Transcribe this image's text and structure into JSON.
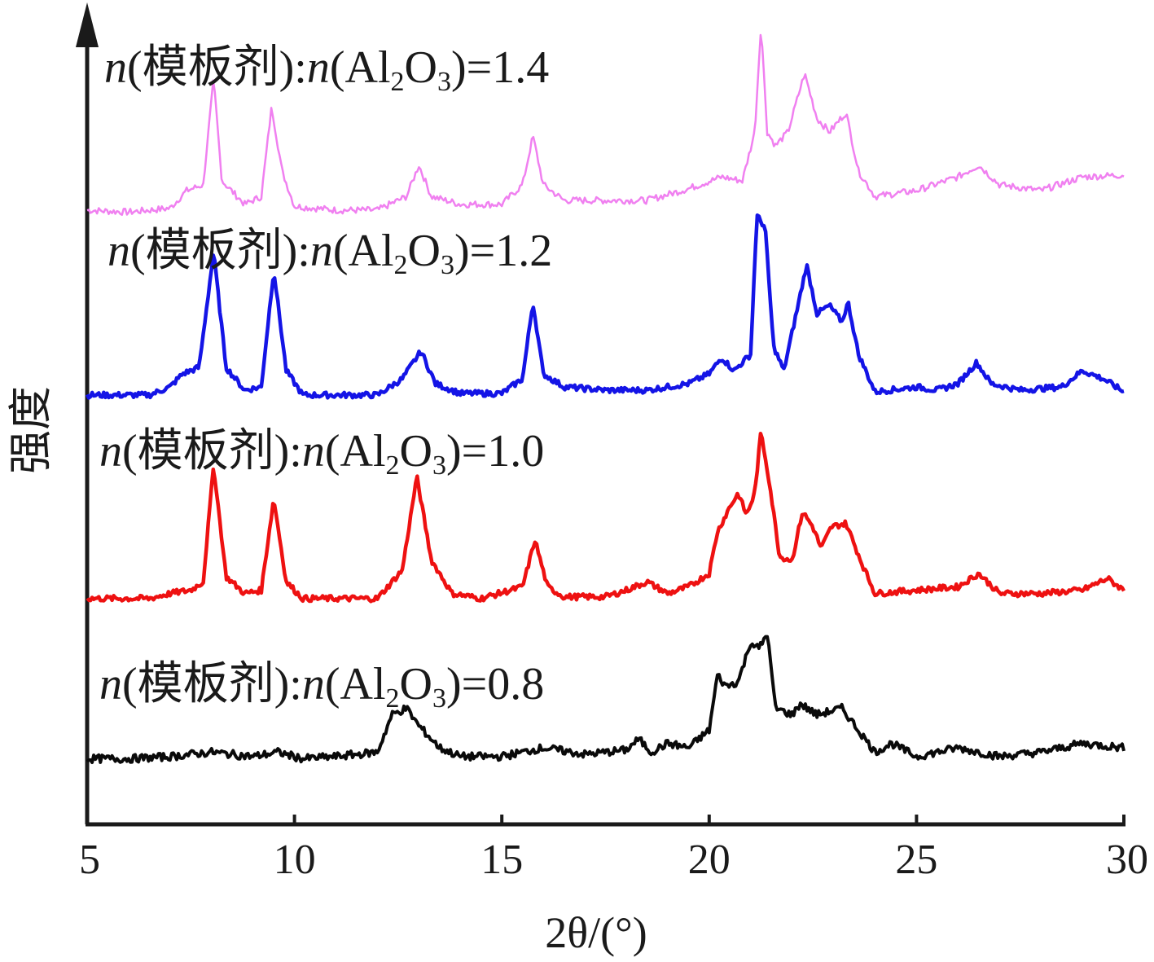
{
  "chart_data": {
    "type": "line",
    "xlabel": "2θ/(°)",
    "ylabel": "强度",
    "xlim": [
      5,
      30
    ],
    "x_ticks": [
      "5",
      "10",
      "15",
      "20",
      "25",
      "30"
    ],
    "y_ticks_shown": false,
    "grid": false,
    "legend": "none",
    "series": [
      {
        "name": "n(模板剂):n(Al2O3)=1.4",
        "label_parts": {
          "n": "n",
          "open": "(模板剂):",
          "mid": "(Al",
          "sub2": "2",
          "O": "O",
          "sub3": "3",
          "close": ")=1.4"
        },
        "color": "#f080f0",
        "points": [
          [
            5,
            0.05
          ],
          [
            6,
            0.04
          ],
          [
            7,
            0.06
          ],
          [
            7.4,
            0.15
          ],
          [
            7.8,
            0.18
          ],
          [
            8.05,
            0.72
          ],
          [
            8.25,
            0.2
          ],
          [
            8.8,
            0.08
          ],
          [
            9.2,
            0.12
          ],
          [
            9.45,
            0.58
          ],
          [
            9.7,
            0.25
          ],
          [
            10,
            0.07
          ],
          [
            11,
            0.05
          ],
          [
            12,
            0.05
          ],
          [
            12.7,
            0.12
          ],
          [
            13.0,
            0.28
          ],
          [
            13.3,
            0.12
          ],
          [
            14,
            0.08
          ],
          [
            15,
            0.08
          ],
          [
            15.5,
            0.18
          ],
          [
            15.75,
            0.43
          ],
          [
            16.0,
            0.18
          ],
          [
            16.5,
            0.1
          ],
          [
            17.5,
            0.1
          ],
          [
            18.5,
            0.1
          ],
          [
            19.5,
            0.16
          ],
          [
            20.3,
            0.22
          ],
          [
            20.8,
            0.2
          ],
          [
            21.1,
            0.45
          ],
          [
            21.25,
            1.0
          ],
          [
            21.4,
            0.45
          ],
          [
            21.6,
            0.38
          ],
          [
            21.9,
            0.45
          ],
          [
            22.3,
            0.75
          ],
          [
            22.6,
            0.52
          ],
          [
            22.9,
            0.45
          ],
          [
            23.3,
            0.55
          ],
          [
            23.6,
            0.25
          ],
          [
            24.0,
            0.12
          ],
          [
            25.0,
            0.15
          ],
          [
            26.0,
            0.22
          ],
          [
            26.5,
            0.28
          ],
          [
            27.0,
            0.18
          ],
          [
            28.0,
            0.15
          ],
          [
            29.0,
            0.22
          ],
          [
            30,
            0.23
          ]
        ]
      },
      {
        "name": "n(模板剂):n(Al2O3)=1.2",
        "label_parts": {
          "n": "n",
          "open": "(模板剂):",
          "mid": "(Al",
          "sub2": "2",
          "O": "O",
          "sub3": "3",
          "close": ")=1.2"
        },
        "color": "#1414e6",
        "points": [
          [
            5,
            0.05
          ],
          [
            6.5,
            0.05
          ],
          [
            7.0,
            0.1
          ],
          [
            7.3,
            0.18
          ],
          [
            7.7,
            0.22
          ],
          [
            8.05,
            0.93
          ],
          [
            8.35,
            0.22
          ],
          [
            8.8,
            0.08
          ],
          [
            9.2,
            0.1
          ],
          [
            9.5,
            0.82
          ],
          [
            9.8,
            0.2
          ],
          [
            10.2,
            0.05
          ],
          [
            11,
            0.05
          ],
          [
            12,
            0.05
          ],
          [
            12.6,
            0.15
          ],
          [
            13.05,
            0.32
          ],
          [
            13.4,
            0.12
          ],
          [
            14,
            0.06
          ],
          [
            15,
            0.06
          ],
          [
            15.5,
            0.15
          ],
          [
            15.75,
            0.62
          ],
          [
            16.0,
            0.18
          ],
          [
            16.5,
            0.1
          ],
          [
            17.5,
            0.08
          ],
          [
            18.5,
            0.08
          ],
          [
            19.5,
            0.12
          ],
          [
            20.0,
            0.18
          ],
          [
            20.3,
            0.28
          ],
          [
            20.6,
            0.2
          ],
          [
            21.0,
            0.3
          ],
          [
            21.15,
            1.15
          ],
          [
            21.35,
            1.08
          ],
          [
            21.55,
            0.35
          ],
          [
            21.8,
            0.2
          ],
          [
            22.1,
            0.55
          ],
          [
            22.35,
            0.85
          ],
          [
            22.6,
            0.55
          ],
          [
            22.9,
            0.6
          ],
          [
            23.2,
            0.5
          ],
          [
            23.35,
            0.62
          ],
          [
            23.6,
            0.3
          ],
          [
            24.0,
            0.07
          ],
          [
            25.0,
            0.1
          ],
          [
            25.5,
            0.08
          ],
          [
            26.0,
            0.12
          ],
          [
            26.45,
            0.25
          ],
          [
            26.8,
            0.12
          ],
          [
            27.5,
            0.08
          ],
          [
            28.5,
            0.1
          ],
          [
            29.0,
            0.2
          ],
          [
            29.5,
            0.15
          ],
          [
            30,
            0.07
          ]
        ]
      },
      {
        "name": "n(模板剂):n(Al2O3)=1.0",
        "label_parts": {
          "n": "n",
          "open": "(模板剂):",
          "mid": "(Al",
          "sub2": "2",
          "O": "O",
          "sub3": "3",
          "close": ")=1.0"
        },
        "color": "#ee1111",
        "points": [
          [
            5,
            0.05
          ],
          [
            6.5,
            0.05
          ],
          [
            7.0,
            0.08
          ],
          [
            7.5,
            0.1
          ],
          [
            7.8,
            0.15
          ],
          [
            8.05,
            0.85
          ],
          [
            8.35,
            0.18
          ],
          [
            8.8,
            0.08
          ],
          [
            9.2,
            0.1
          ],
          [
            9.5,
            0.65
          ],
          [
            9.8,
            0.15
          ],
          [
            10.2,
            0.05
          ],
          [
            11,
            0.05
          ],
          [
            12,
            0.05
          ],
          [
            12.6,
            0.22
          ],
          [
            12.95,
            0.78
          ],
          [
            13.3,
            0.28
          ],
          [
            13.8,
            0.08
          ],
          [
            14.5,
            0.05
          ],
          [
            15.5,
            0.12
          ],
          [
            15.8,
            0.4
          ],
          [
            16.1,
            0.12
          ],
          [
            16.5,
            0.06
          ],
          [
            17.5,
            0.06
          ],
          [
            18.0,
            0.1
          ],
          [
            18.5,
            0.15
          ],
          [
            19.0,
            0.08
          ],
          [
            19.5,
            0.12
          ],
          [
            20.0,
            0.2
          ],
          [
            20.2,
            0.45
          ],
          [
            20.5,
            0.6
          ],
          [
            20.7,
            0.68
          ],
          [
            20.9,
            0.55
          ],
          [
            21.1,
            0.68
          ],
          [
            21.25,
            1.05
          ],
          [
            21.45,
            0.75
          ],
          [
            21.7,
            0.3
          ],
          [
            22.0,
            0.28
          ],
          [
            22.25,
            0.57
          ],
          [
            22.5,
            0.48
          ],
          [
            22.7,
            0.35
          ],
          [
            22.95,
            0.48
          ],
          [
            23.3,
            0.5
          ],
          [
            23.7,
            0.25
          ],
          [
            24.0,
            0.08
          ],
          [
            25.0,
            0.1
          ],
          [
            26.0,
            0.12
          ],
          [
            26.5,
            0.2
          ],
          [
            27.0,
            0.08
          ],
          [
            28.0,
            0.08
          ],
          [
            29.0,
            0.1
          ],
          [
            29.6,
            0.17
          ],
          [
            30,
            0.1
          ]
        ]
      },
      {
        "name": "n(模板剂):n(Al2O3)=0.8",
        "label_parts": {
          "n": "n",
          "open": "(模板剂):",
          "mid": "(Al",
          "sub2": "2",
          "O": "O",
          "sub3": "3",
          "close": ")=0.8"
        },
        "color": "#0a0a0a",
        "points": [
          [
            5,
            0.05
          ],
          [
            6,
            0.05
          ],
          [
            7,
            0.06
          ],
          [
            8.0,
            0.08
          ],
          [
            9.0,
            0.06
          ],
          [
            9.6,
            0.08
          ],
          [
            10.2,
            0.05
          ],
          [
            11,
            0.06
          ],
          [
            12.0,
            0.08
          ],
          [
            12.35,
            0.25
          ],
          [
            12.7,
            0.28
          ],
          [
            13.0,
            0.2
          ],
          [
            13.5,
            0.1
          ],
          [
            14,
            0.06
          ],
          [
            15,
            0.06
          ],
          [
            16.0,
            0.1
          ],
          [
            17,
            0.07
          ],
          [
            18.0,
            0.09
          ],
          [
            18.3,
            0.14
          ],
          [
            18.6,
            0.08
          ],
          [
            19.0,
            0.12
          ],
          [
            19.5,
            0.1
          ],
          [
            20.0,
            0.18
          ],
          [
            20.2,
            0.43
          ],
          [
            20.4,
            0.38
          ],
          [
            20.7,
            0.4
          ],
          [
            21.0,
            0.58
          ],
          [
            21.2,
            0.55
          ],
          [
            21.4,
            0.62
          ],
          [
            21.6,
            0.28
          ],
          [
            22.0,
            0.25
          ],
          [
            22.2,
            0.3
          ],
          [
            22.6,
            0.25
          ],
          [
            23.2,
            0.28
          ],
          [
            23.6,
            0.18
          ],
          [
            24.0,
            0.08
          ],
          [
            24.4,
            0.12
          ],
          [
            25.0,
            0.06
          ],
          [
            26.0,
            0.1
          ],
          [
            27.0,
            0.06
          ],
          [
            28.0,
            0.08
          ],
          [
            29.0,
            0.12
          ],
          [
            30,
            0.1
          ]
        ]
      }
    ]
  }
}
